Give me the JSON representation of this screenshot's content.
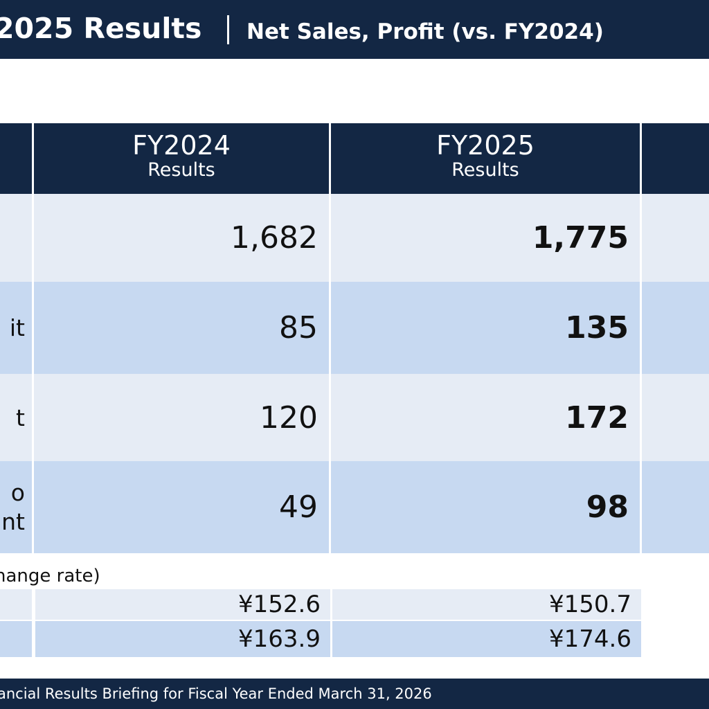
{
  "header": {
    "title": "2025 Results",
    "subtitle": "Net Sales, Profit (vs. FY2024)"
  },
  "table": {
    "columns": [
      {
        "year": "FY2024",
        "sub": "Results"
      },
      {
        "year": "FY2025",
        "sub": "Results"
      }
    ],
    "rows": [
      {
        "label": "",
        "label2": "",
        "fy2024": "1,682",
        "fy2025": "1,775"
      },
      {
        "label": "it",
        "label2": "",
        "fy2024": "85",
        "fy2025": "135"
      },
      {
        "label": "t",
        "label2": "",
        "fy2024": "120",
        "fy2025": "172"
      },
      {
        "label": "o",
        "label2": "nt",
        "fy2024": "49",
        "fy2025": "98"
      }
    ]
  },
  "fx": {
    "note": "hange rate)",
    "rows": [
      {
        "fy2024": "¥152.6",
        "fy2025": "¥150.7"
      },
      {
        "fy2024": "¥163.9",
        "fy2025": "¥174.6"
      }
    ]
  },
  "footer": {
    "text": "ancial Results Briefing for Fiscal Year Ended March 31, 2026"
  },
  "colors": {
    "navy": "#132744",
    "row_light": "#e6ecf5",
    "row_mid": "#c7d9f1"
  }
}
